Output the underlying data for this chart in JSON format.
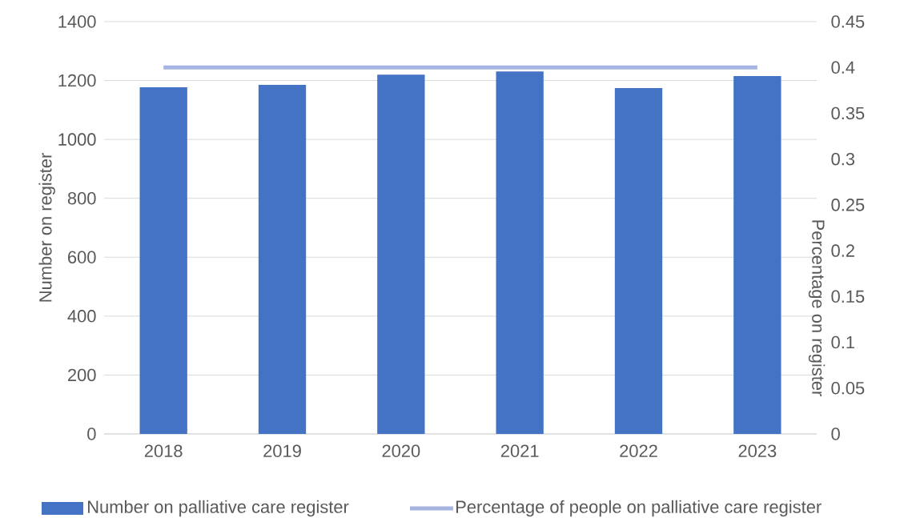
{
  "chart_data": {
    "type": "bar",
    "categories": [
      "2018",
      "2019",
      "2020",
      "2021",
      "2022",
      "2023"
    ],
    "ylabel": "Number on register",
    "y2label": "Percentage on register",
    "ylim": [
      0,
      1400
    ],
    "yticks": [
      0,
      200,
      400,
      600,
      800,
      1000,
      1200,
      1400
    ],
    "y2lim": [
      0,
      0.45
    ],
    "y2ticks": [
      0,
      0.05,
      0.1,
      0.15,
      0.2,
      0.25,
      0.3,
      0.35,
      0.4,
      0.45
    ],
    "grid": "y",
    "legend": "bottom",
    "series": [
      {
        "name": "Number on palliative care register",
        "color": "#4472c4",
        "values": [
          1177,
          1185,
          1220,
          1231,
          1174,
          1215
        ]
      },
      {
        "name": "Percentage of people on palliative care register",
        "type": "line",
        "axis": "y2",
        "color": "#a5b4e0",
        "values": [
          0.4,
          0.4,
          0.4,
          0.4,
          0.4,
          0.4
        ]
      }
    ]
  }
}
